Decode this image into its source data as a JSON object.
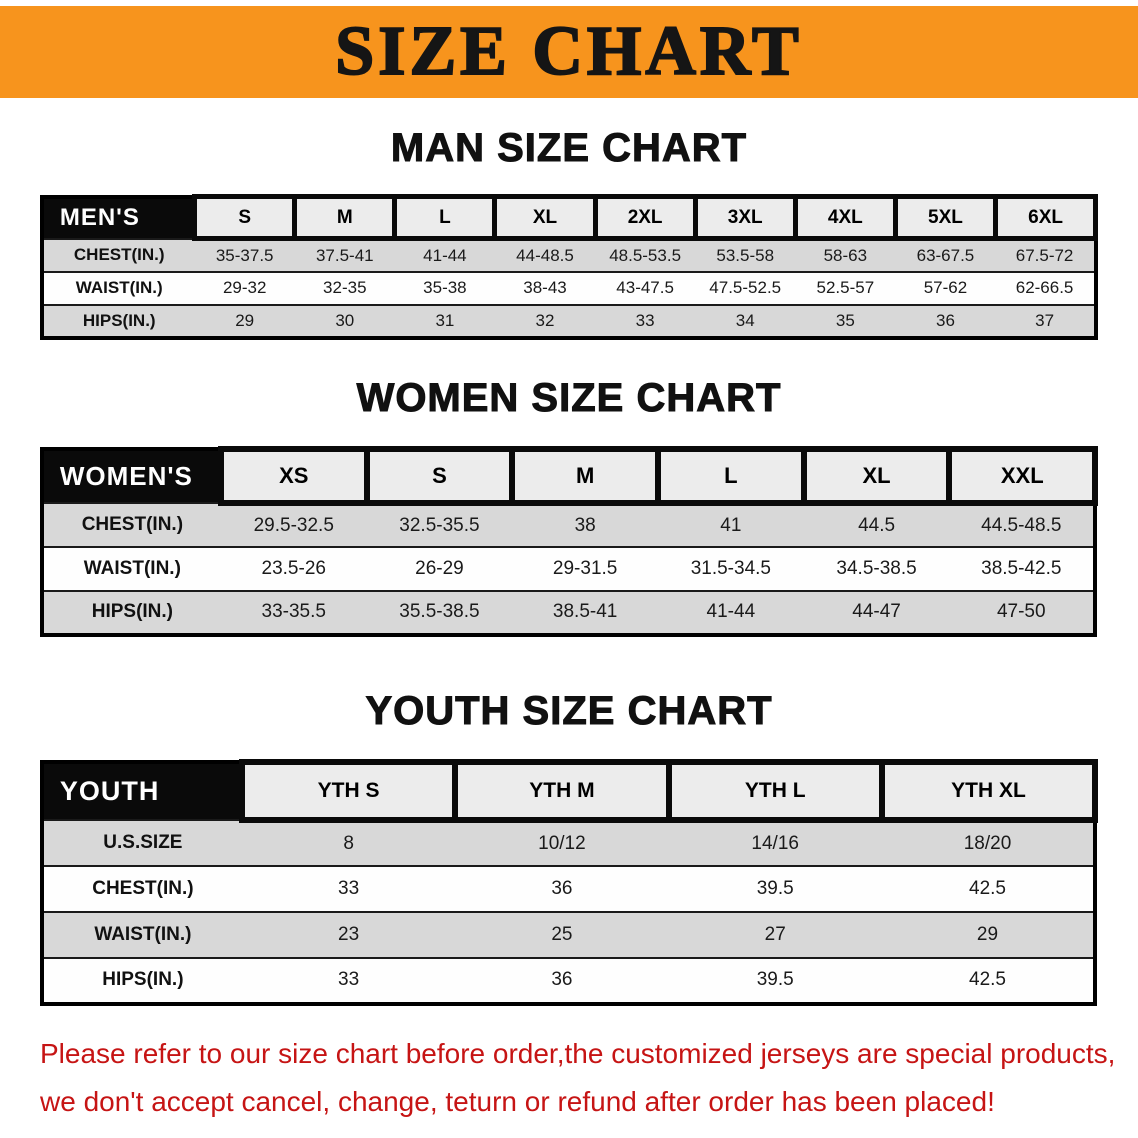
{
  "banner": {
    "title": "SIZE CHART"
  },
  "sections": [
    {
      "id": "men",
      "heading": "MAN SIZE CHART",
      "table": {
        "corner": "MEN'S",
        "columns": [
          "S",
          "M",
          "L",
          "XL",
          "2XL",
          "3XL",
          "4XL",
          "5XL",
          "6XL"
        ],
        "rows": [
          {
            "label": "CHEST(IN.)",
            "values": [
              "35-37.5",
              "37.5-41",
              "41-44",
              "44-48.5",
              "48.5-53.5",
              "53.5-58",
              "58-63",
              "63-67.5",
              "67.5-72"
            ]
          },
          {
            "label": "WAIST(IN.)",
            "values": [
              "29-32",
              "32-35",
              "35-38",
              "38-43",
              "43-47.5",
              "47.5-52.5",
              "52.5-57",
              "57-62",
              "62-66.5"
            ]
          },
          {
            "label": "HIPS(IN.)",
            "values": [
              "29",
              "30",
              "31",
              "32",
              "33",
              "34",
              "35",
              "36",
              "37"
            ]
          }
        ]
      }
    },
    {
      "id": "women",
      "heading": "WOMEN SIZE CHART",
      "table": {
        "corner": "WOMEN'S",
        "columns": [
          "XS",
          "S",
          "M",
          "L",
          "XL",
          "XXL"
        ],
        "rows": [
          {
            "label": "CHEST(IN.)",
            "values": [
              "29.5-32.5",
              "32.5-35.5",
              "38",
              "41",
              "44.5",
              "44.5-48.5"
            ]
          },
          {
            "label": "WAIST(IN.)",
            "values": [
              "23.5-26",
              "26-29",
              "29-31.5",
              "31.5-34.5",
              "34.5-38.5",
              "38.5-42.5"
            ]
          },
          {
            "label": "HIPS(IN.)",
            "values": [
              "33-35.5",
              "35.5-38.5",
              "38.5-41",
              "41-44",
              "44-47",
              "47-50"
            ]
          }
        ]
      }
    },
    {
      "id": "youth",
      "heading": "YOUTH SIZE CHART",
      "table": {
        "corner": "YOUTH",
        "columns": [
          "YTH S",
          "YTH M",
          "YTH L",
          "YTH XL"
        ],
        "rows": [
          {
            "label": "U.S.SIZE",
            "values": [
              "8",
              "10/12",
              "14/16",
              "18/20"
            ]
          },
          {
            "label": "CHEST(IN.)",
            "values": [
              "33",
              "36",
              "39.5",
              "42.5"
            ]
          },
          {
            "label": "WAIST(IN.)",
            "values": [
              "23",
              "25",
              "27",
              "29"
            ]
          },
          {
            "label": "HIPS(IN.)",
            "values": [
              "33",
              "36",
              "39.5",
              "42.5"
            ]
          }
        ]
      }
    }
  ],
  "footer": {
    "line1": "Please refer to our size chart before order,the customized jerseys are special products,",
    "line2": "we don't accept cancel, change, teturn or refund after order has been placed!"
  },
  "colors": {
    "banner_bg": "#f7941d",
    "header_band": "#0a0a0a",
    "row_shade": "#d8d8d8",
    "footer_text": "#c61414"
  }
}
